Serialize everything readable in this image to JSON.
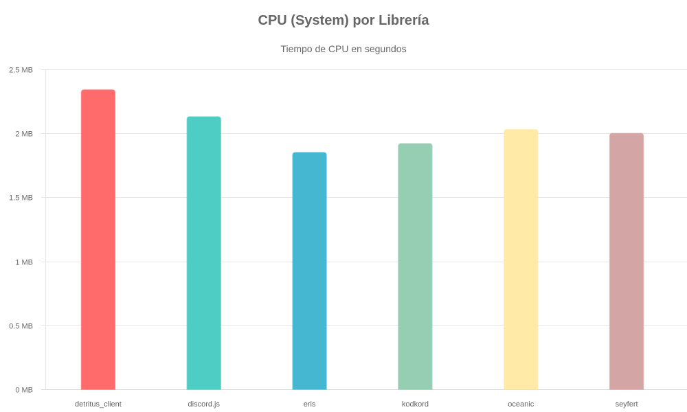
{
  "chart_data": {
    "type": "bar",
    "title": "CPU (System) por Librería",
    "subtitle": "Tiempo de CPU en segundos",
    "xlabel": "",
    "ylabel": "",
    "categories": [
      "detritus_client",
      "discord.js",
      "eris",
      "kodkord",
      "oceanic",
      "seyfert"
    ],
    "values": [
      2.34,
      2.13,
      1.85,
      1.92,
      2.03,
      2.0
    ],
    "colors": [
      "#ff6b6b",
      "#4ecdc4",
      "#45b7d1",
      "#96ceb4",
      "#ffeaa7",
      "#d4a5a5"
    ],
    "ylim": [
      0,
      2.5
    ],
    "y_ticks": [
      "0 MB",
      "0.5 MB",
      "1 MB",
      "1.5 MB",
      "2 MB",
      "2.5 MB"
    ],
    "y_tick_values": [
      0,
      0.5,
      1,
      1.5,
      2,
      2.5
    ],
    "grid": true,
    "legend": "none"
  }
}
